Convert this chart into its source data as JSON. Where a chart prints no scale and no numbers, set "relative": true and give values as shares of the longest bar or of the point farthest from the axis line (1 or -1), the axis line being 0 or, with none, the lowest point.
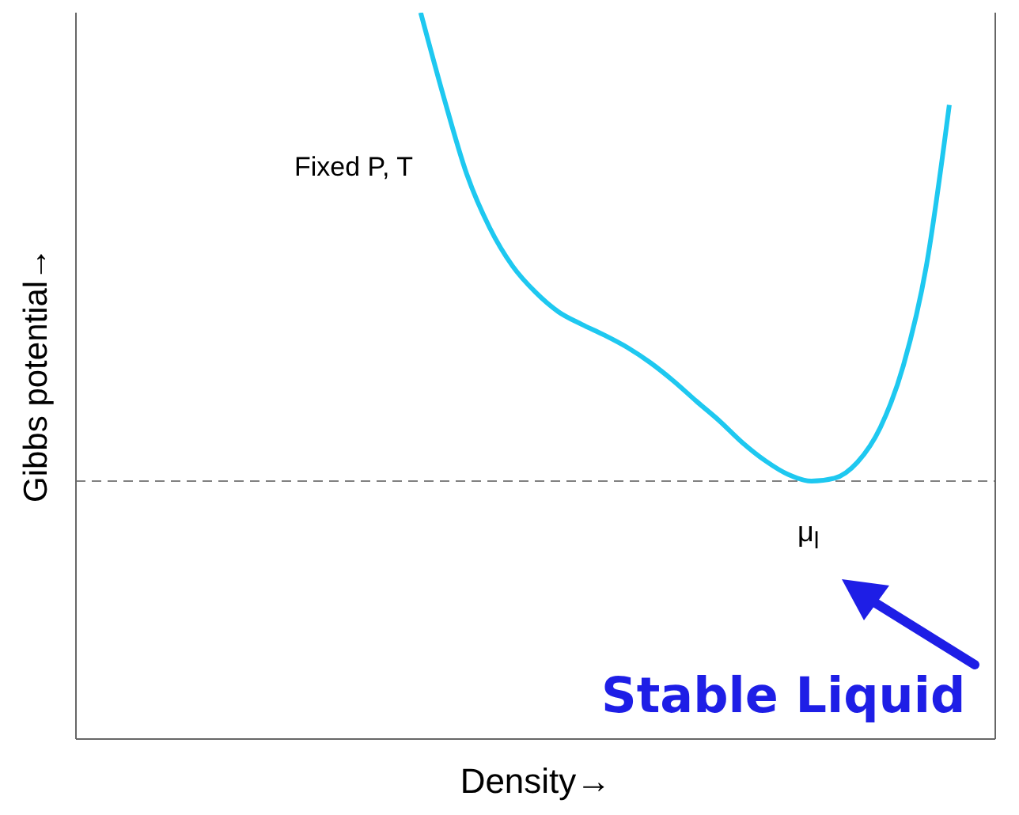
{
  "chart_data": {
    "type": "line",
    "relative": true,
    "xlabel": "Density→",
    "ylabel": "Gibbs potential→",
    "categories": [
      null,
      null,
      null,
      null,
      null,
      null,
      null,
      null,
      null,
      null,
      null,
      null,
      null,
      null,
      null,
      null,
      null,
      null,
      null,
      null,
      null,
      null,
      null,
      null,
      null,
      null,
      null,
      null,
      null,
      null,
      null,
      null,
      null,
      null,
      null,
      null,
      null,
      null,
      null,
      null,
      null
    ],
    "series": [
      {
        "color": "#1ec8f0",
        "values": [
          null,
          null,
          null,
          null,
          null,
          null,
          null,
          null,
          null,
          null,
          null,
          null,
          null,
          null,
          null,
          1.0,
          0.884,
          0.778,
          0.704,
          0.651,
          0.615,
          0.588,
          0.571,
          0.556,
          0.539,
          0.518,
          0.493,
          0.465,
          0.438,
          0.408,
          0.383,
          0.364,
          0.355,
          0.359,
          0.381,
          0.429,
          0.514,
          0.651,
          0.873,
          null,
          null
        ]
      }
    ],
    "ref_lines": [
      {
        "axis": "y",
        "value": 0.355,
        "color": "#808080",
        "line_style": "dashed"
      }
    ],
    "annotations": [
      "Fixed P, T",
      "μ$_{l}$",
      "Stable Liquid"
    ],
    "marker": "none",
    "line_style": "solid",
    "grid": false,
    "legend": false
  }
}
